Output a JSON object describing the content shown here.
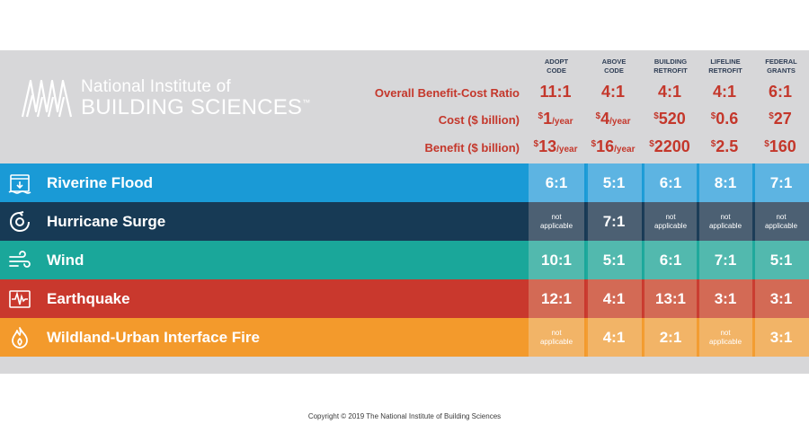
{
  "logo": {
    "line1": "National Institute of",
    "line2": "BUILDING SCIENCES",
    "trademark": "™"
  },
  "colors": {
    "header_bg": "#d7d7d9",
    "label_red": "#c4372b",
    "header_text": "#2f3e55"
  },
  "chart_data": {
    "type": "table",
    "columns": [
      {
        "line1": "ADOPT",
        "line2": "CODE"
      },
      {
        "line1": "ABOVE",
        "line2": "CODE"
      },
      {
        "line1": "BUILDING",
        "line2": "RETROFIT"
      },
      {
        "line1": "LIFELINE",
        "line2": "RETROFIT"
      },
      {
        "line1": "FEDERAL",
        "line2": "GRANTS"
      }
    ],
    "summary": {
      "bcr_label": "Overall Benefit-Cost Ratio",
      "bcr": [
        "11:1",
        "4:1",
        "4:1",
        "4:1",
        "6:1"
      ],
      "cost_label": "Cost ($ billion)",
      "cost": [
        {
          "sup": "$",
          "num": "1",
          "unit": "/year"
        },
        {
          "sup": "$",
          "num": "4",
          "unit": "/year"
        },
        {
          "sup": "$",
          "num": "520",
          "unit": ""
        },
        {
          "sup": "$",
          "num": "0.6",
          "unit": ""
        },
        {
          "sup": "$",
          "num": "27",
          "unit": ""
        }
      ],
      "benefit_label": "Benefit ($ billion)",
      "benefit": [
        {
          "sup": "$",
          "num": "13",
          "unit": "/year"
        },
        {
          "sup": "$",
          "num": "16",
          "unit": "/year"
        },
        {
          "sup": "$",
          "num": "2200",
          "unit": ""
        },
        {
          "sup": "$",
          "num": "2.5",
          "unit": ""
        },
        {
          "sup": "$",
          "num": "160",
          "unit": ""
        }
      ]
    },
    "hazards": [
      {
        "name": "Riverine Flood",
        "icon": "flood-icon",
        "color": "#1a9ad6",
        "cell_color": "#5db4e2",
        "values": [
          "6:1",
          "5:1",
          "6:1",
          "8:1",
          "7:1"
        ]
      },
      {
        "name": "Hurricane Surge",
        "icon": "hurricane-icon",
        "color": "#173a55",
        "cell_color": "#4c6073",
        "values": [
          "not applicable",
          "7:1",
          "not applicable",
          "not applicable",
          "not applicable"
        ]
      },
      {
        "name": "Wind",
        "icon": "wind-icon",
        "color": "#1aa79a",
        "cell_color": "#52b9ae",
        "values": [
          "10:1",
          "5:1",
          "6:1",
          "7:1",
          "5:1"
        ]
      },
      {
        "name": "Earthquake",
        "icon": "earthquake-icon",
        "color": "#c9382d",
        "cell_color": "#d36a55",
        "values": [
          "12:1",
          "4:1",
          "13:1",
          "3:1",
          "3:1"
        ]
      },
      {
        "name": "Wildland-Urban Interface Fire",
        "icon": "fire-icon",
        "color": "#f39a2c",
        "cell_color": "#f2b467",
        "values": [
          "not applicable",
          "4:1",
          "2:1",
          "not applicable",
          "3:1"
        ]
      }
    ]
  },
  "footer": {
    "copyright": "Copyright © 2019 The National Institute of Building Sciences"
  }
}
